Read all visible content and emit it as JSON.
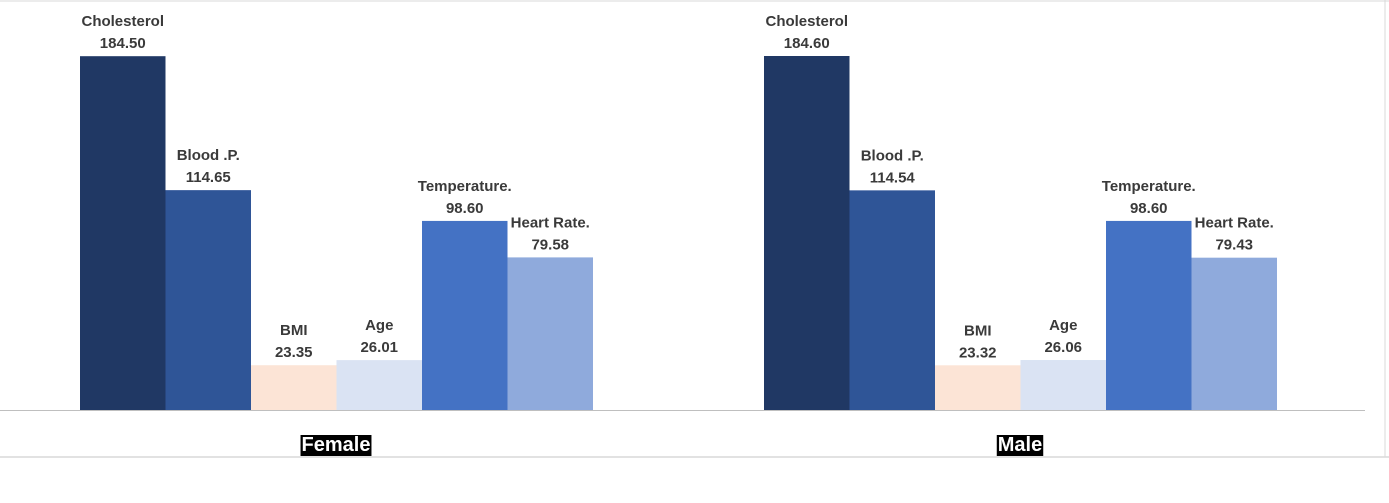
{
  "chart_data": {
    "type": "bar",
    "categories": [
      "Female",
      "Male"
    ],
    "series": [
      {
        "name": "Cholesterol",
        "values": [
          184.5,
          184.6
        ],
        "color": "#203864"
      },
      {
        "name": "Blood .P.",
        "values": [
          114.65,
          114.54
        ],
        "color": "#2f5597"
      },
      {
        "name": "BMI",
        "values": [
          23.35,
          23.32
        ],
        "color": "#fce4d6"
      },
      {
        "name": "Age",
        "values": [
          26.01,
          26.06
        ],
        "color": "#dae3f3"
      },
      {
        "name": "Temperature.",
        "values": [
          98.6,
          98.6
        ],
        "color": "#4472c4"
      },
      {
        "name": "Heart Rate.",
        "values": [
          79.58,
          79.43
        ],
        "color": "#8faadc"
      }
    ],
    "value_labels": [
      [
        "184.50",
        "114.65",
        "23.35",
        "26.01",
        "98.60",
        "79.58"
      ],
      [
        "184.60",
        "114.54",
        "23.32",
        "26.06",
        "98.60",
        "79.43"
      ]
    ],
    "ylim": [
      0,
      184.6
    ],
    "grid": false,
    "legend": "none",
    "xlabel": "",
    "ylabel": "",
    "title": "",
    "category_label_background": "#000000"
  }
}
